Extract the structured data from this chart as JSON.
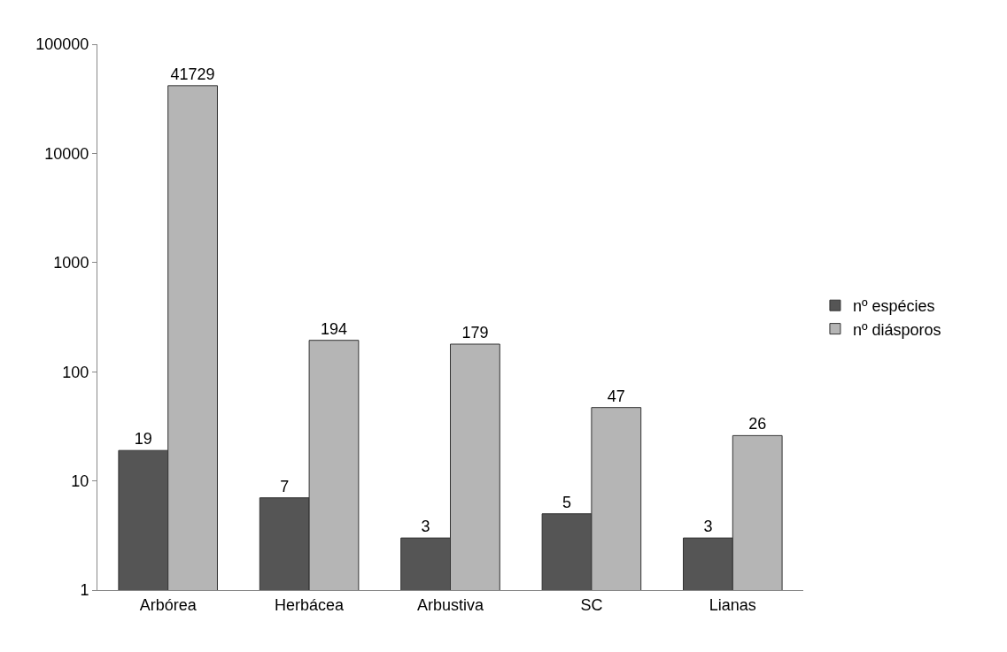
{
  "chart_data": {
    "type": "bar",
    "categories": [
      "Arbórea",
      "Herbácea",
      "Arbustiva",
      "SC",
      "Lianas"
    ],
    "series": [
      {
        "name": "nº espécies",
        "color": "#555555",
        "values": [
          19,
          7,
          3,
          5,
          3
        ]
      },
      {
        "name": "nº diásporos",
        "color": "#b5b5b5",
        "values": [
          41729,
          194,
          179,
          47,
          26
        ]
      }
    ],
    "log": "y",
    "ylim": [
      1,
      100000
    ],
    "yticks": [
      1,
      10,
      100,
      1000,
      10000,
      100000
    ],
    "data_labels": true,
    "legend": "right"
  }
}
